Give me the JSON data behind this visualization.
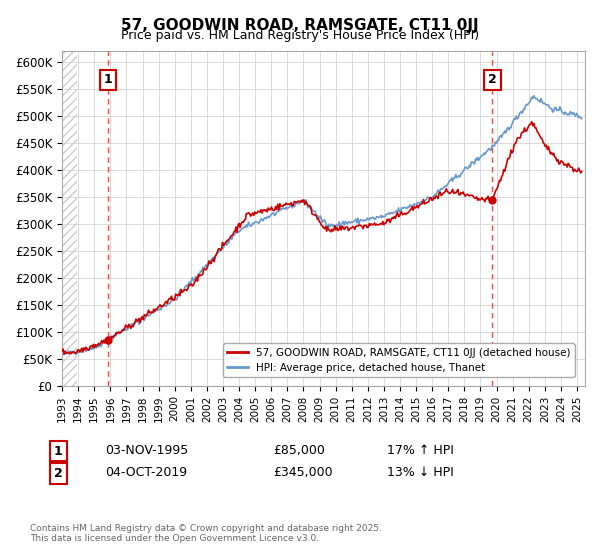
{
  "title": "57, GOODWIN ROAD, RAMSGATE, CT11 0JJ",
  "subtitle": "Price paid vs. HM Land Registry's House Price Index (HPI)",
  "ylabel_ticks": [
    "£0",
    "£50K",
    "£100K",
    "£150K",
    "£200K",
    "£250K",
    "£300K",
    "£350K",
    "£400K",
    "£450K",
    "£500K",
    "£550K",
    "£600K"
  ],
  "ylim": [
    0,
    620000
  ],
  "ytick_vals": [
    0,
    50000,
    100000,
    150000,
    200000,
    250000,
    300000,
    350000,
    400000,
    450000,
    500000,
    550000,
    600000
  ],
  "xmin": 1993.0,
  "xmax": 2025.5,
  "marker1_x": 1995.84,
  "marker1_y": 85000,
  "marker2_x": 2019.75,
  "marker2_y": 345000,
  "legend_label_red": "57, GOODWIN ROAD, RAMSGATE, CT11 0JJ (detached house)",
  "legend_label_blue": "HPI: Average price, detached house, Thanet",
  "footnote": "Contains HM Land Registry data © Crown copyright and database right 2025.\nThis data is licensed under the Open Government Licence v3.0.",
  "red_color": "#cc0000",
  "blue_color": "#6699cc",
  "grid_color": "#cccccc",
  "vline_color": "#ff4444",
  "label1_date": "03-NOV-1995",
  "label1_price": "£85,000",
  "label1_hpi": "17% ↑ HPI",
  "label2_date": "04-OCT-2019",
  "label2_price": "£345,000",
  "label2_hpi": "13% ↓ HPI"
}
